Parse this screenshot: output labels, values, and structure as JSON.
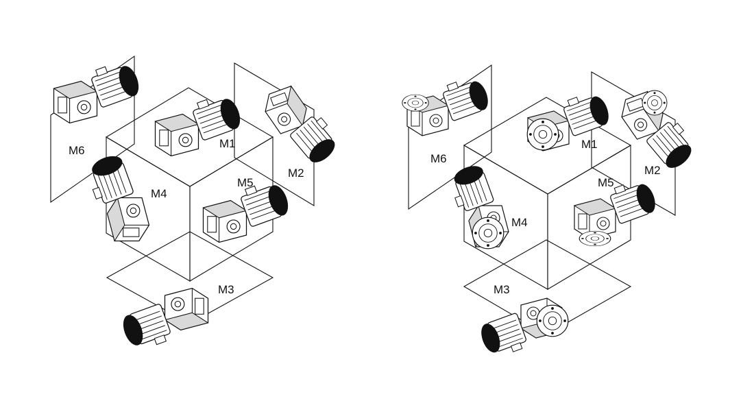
{
  "diagrams": [
    {
      "labels": {
        "m1": "M1",
        "m2": "M2",
        "m3": "M3",
        "m4": "M4",
        "m5": "M5",
        "m6": "M6"
      }
    },
    {
      "labels": {
        "m1": "M1",
        "m2": "M2",
        "m3": "M3",
        "m4": "M4",
        "m5": "M5",
        "m6": "M6"
      }
    }
  ],
  "colors": {
    "line": "#111111",
    "fill": "#ffffff",
    "shade": "#d9d9d9"
  }
}
